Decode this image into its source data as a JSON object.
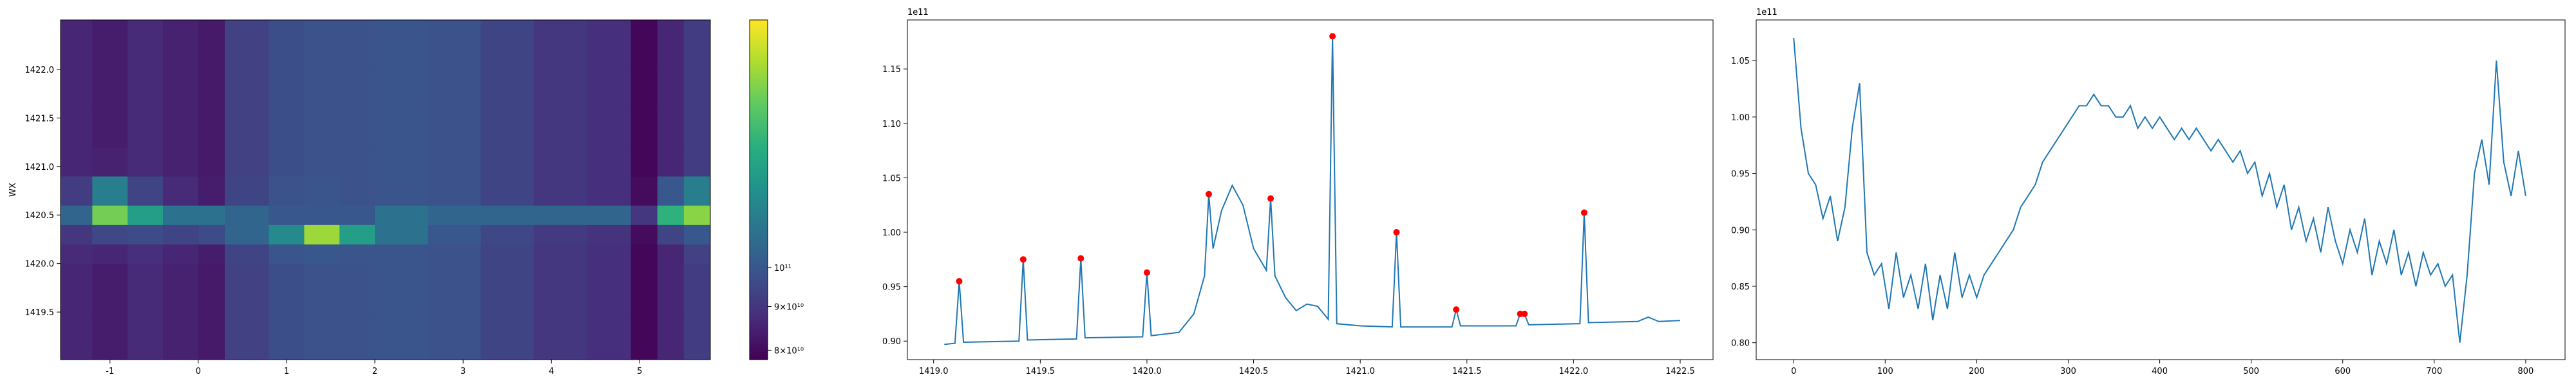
{
  "chart_data": [
    {
      "type": "heatmap",
      "ylabel": "WX",
      "x_edges": [
        -1.56,
        -1.2,
        -0.8,
        -0.4,
        0,
        0.3,
        0.8,
        1.2,
        1.6,
        2.0,
        2.6,
        3.2,
        3.8,
        4.4,
        4.9,
        5.2,
        5.5,
        5.8
      ],
      "y_edges": [
        1419.01,
        1419.5,
        1420.0,
        1420.2,
        1420.4,
        1420.6,
        1420.9,
        1421.2,
        1421.6,
        1422.0,
        1422.51
      ],
      "z": [
        [
          86000000000.0,
          84000000000.0,
          87000000000.0,
          85000000000.0,
          83000000000.0,
          93000000000.0,
          97000000000.0,
          98000000000.0,
          98000000000.0,
          99000000000.0,
          98000000000.0,
          94000000000.0,
          90000000000.0,
          88000000000.0,
          79000000000.0,
          86000000000.0,
          92000000000.0
        ],
        [
          86000000000.0,
          84000000000.0,
          87000000000.0,
          85000000000.0,
          83000000000.0,
          93000000000.0,
          97000000000.0,
          98000000000.0,
          98000000000.0,
          99000000000.0,
          98000000000.0,
          94000000000.0,
          90000000000.0,
          88000000000.0,
          79000000000.0,
          86000000000.0,
          92000000000.0
        ],
        [
          87000000000.0,
          86000000000.0,
          88000000000.0,
          86000000000.0,
          84000000000.0,
          94000000000.0,
          99000000000.0,
          100000000000.0,
          99000000000.0,
          99000000000.0,
          98000000000.0,
          94000000000.0,
          90000000000.0,
          88000000000.0,
          79000000000.0,
          86000000000.0,
          93000000000.0
        ],
        [
          90000000000.0,
          95000000000.0,
          96000000000.0,
          94000000000.0,
          96000000000.0,
          105000000000.0,
          120000000000.0,
          170000000000.0,
          130000000000.0,
          110000000000.0,
          100000000000.0,
          95000000000.0,
          91000000000.0,
          89000000000.0,
          80000000000.0,
          94000000000.0,
          100000000000.0
        ],
        [
          105000000000.0,
          160000000000.0,
          130000000000.0,
          110000000000.0,
          110000000000.0,
          105000000000.0,
          100000000000.0,
          100000000000.0,
          100000000000.0,
          110000000000.0,
          105000000000.0,
          105000000000.0,
          105000000000.0,
          105000000000.0,
          90000000000.0,
          140000000000.0,
          165000000000.0
        ],
        [
          92000000000.0,
          115000000000.0,
          94000000000.0,
          87000000000.0,
          84000000000.0,
          94000000000.0,
          98000000000.0,
          99000000000.0,
          98000000000.0,
          99000000000.0,
          98000000000.0,
          94000000000.0,
          90000000000.0,
          88000000000.0,
          80000000000.0,
          100000000000.0,
          115000000000.0
        ],
        [
          86000000000.0,
          85000000000.0,
          87000000000.0,
          85000000000.0,
          83000000000.0,
          93000000000.0,
          97000000000.0,
          98000000000.0,
          98000000000.0,
          99000000000.0,
          98000000000.0,
          94000000000.0,
          90000000000.0,
          88000000000.0,
          79000000000.0,
          86000000000.0,
          92000000000.0
        ],
        [
          86000000000.0,
          84000000000.0,
          87000000000.0,
          85000000000.0,
          83000000000.0,
          93000000000.0,
          97000000000.0,
          98000000000.0,
          98000000000.0,
          99000000000.0,
          98000000000.0,
          94000000000.0,
          90000000000.0,
          88000000000.0,
          79000000000.0,
          86000000000.0,
          92000000000.0
        ],
        [
          86000000000.0,
          84000000000.0,
          87000000000.0,
          85000000000.0,
          83000000000.0,
          93000000000.0,
          97000000000.0,
          98000000000.0,
          98000000000.0,
          99000000000.0,
          98000000000.0,
          94000000000.0,
          90000000000.0,
          88000000000.0,
          79000000000.0,
          86000000000.0,
          92000000000.0
        ],
        [
          86000000000.0,
          84000000000.0,
          87000000000.0,
          85000000000.0,
          83000000000.0,
          93000000000.0,
          97000000000.0,
          98000000000.0,
          98000000000.0,
          99000000000.0,
          98000000000.0,
          94000000000.0,
          90000000000.0,
          88000000000.0,
          79000000000.0,
          86000000000.0,
          92000000000.0
        ]
      ],
      "xlim": [
        -1.56,
        5.8
      ],
      "ylim": [
        1419.01,
        1422.51
      ],
      "xticks": [
        -1,
        0,
        1,
        2,
        3,
        4,
        5
      ],
      "yticks": [
        1419.5,
        {
          "value": 1420.0,
          "label": "1420.0"
        },
        1420.5,
        {
          "value": 1421.0,
          "label": "1421.0"
        },
        1421.5,
        {
          "value": 1422.0,
          "label": "1422.0"
        }
      ],
      "colorbar": {
        "log": true,
        "lim": [
          78000000000.0,
          195000000000.0
        ],
        "ticks": [
          {
            "value": 100000000000.0,
            "label": "10¹¹"
          },
          {
            "value": 90000000000.0,
            "label": "9×10¹⁰"
          },
          {
            "value": 80000000000.0,
            "label": "8×10¹⁰"
          }
        ]
      }
    },
    {
      "type": "line",
      "x": [
        1419.05,
        1419.1,
        1419.12,
        1419.14,
        1419.4,
        1419.42,
        1419.44,
        1419.67,
        1419.69,
        1419.71,
        1419.98,
        1420.0,
        1420.02,
        1420.15,
        1420.22,
        1420.27,
        1420.29,
        1420.31,
        1420.35,
        1420.4,
        1420.45,
        1420.5,
        1420.56,
        1420.58,
        1420.6,
        1420.65,
        1420.7,
        1420.75,
        1420.8,
        1420.85,
        1420.87,
        1420.89,
        1421.0,
        1421.15,
        1421.17,
        1421.19,
        1421.43,
        1421.45,
        1421.47,
        1421.73,
        1421.75,
        1421.77,
        1421.79,
        1422.03,
        1422.05,
        1422.07,
        1422.3,
        1422.35,
        1422.4,
        1422.5
      ],
      "series": [
        {
          "color": "#1f77b4",
          "values": [
            0.897,
            0.898,
            0.955,
            0.899,
            0.9,
            0.975,
            0.901,
            0.902,
            0.976,
            0.903,
            0.904,
            0.963,
            0.905,
            0.908,
            0.925,
            0.96,
            1.035,
            0.985,
            1.02,
            1.043,
            1.025,
            0.985,
            0.965,
            1.031,
            0.96,
            0.94,
            0.928,
            0.934,
            0.932,
            0.92,
            1.18,
            0.916,
            0.914,
            0.913,
            1.0,
            0.913,
            0.913,
            0.929,
            0.914,
            0.914,
            0.925,
            0.925,
            0.915,
            0.916,
            1.018,
            0.917,
            0.918,
            0.922,
            0.918,
            0.919
          ]
        }
      ],
      "peaks": {
        "color": "#ff0000",
        "x": [
          1419.12,
          1419.42,
          1419.69,
          1420.0,
          1420.29,
          1420.58,
          1420.87,
          1421.17,
          1421.45,
          1421.75,
          1421.77,
          1422.05
        ],
        "values": [
          0.955,
          0.975,
          0.976,
          0.963,
          1.035,
          1.031,
          1.18,
          1.0,
          0.929,
          0.925,
          0.925,
          1.018
        ]
      },
      "y_offset_text": "1e11",
      "xlim": [
        1418.877,
        1422.654
      ],
      "ylim": [
        0.883,
        1.195
      ],
      "xticks": [
        {
          "value": 1419.0,
          "label": "1419.0"
        },
        1419.5,
        {
          "value": 1420.0,
          "label": "1420.0"
        },
        1420.5,
        {
          "value": 1421.0,
          "label": "1421.0"
        },
        1421.5,
        {
          "value": 1422.0,
          "label": "1422.0"
        },
        1422.5
      ],
      "yticks": [
        {
          "value": 0.9,
          "label": "0.90"
        },
        0.95,
        {
          "value": 1.0,
          "label": "1.00"
        },
        1.05,
        {
          "value": 1.1,
          "label": "1.10"
        },
        1.15
      ]
    },
    {
      "type": "line",
      "x": [
        0,
        8,
        16,
        24,
        32,
        40,
        48,
        56,
        64,
        72,
        80,
        88,
        96,
        104,
        112,
        120,
        128,
        136,
        144,
        152,
        160,
        168,
        176,
        184,
        192,
        200,
        208,
        216,
        224,
        232,
        240,
        248,
        256,
        264,
        272,
        280,
        288,
        296,
        304,
        312,
        320,
        328,
        336,
        344,
        352,
        360,
        368,
        376,
        384,
        392,
        400,
        408,
        416,
        424,
        432,
        440,
        448,
        456,
        464,
        472,
        480,
        488,
        496,
        504,
        512,
        520,
        528,
        536,
        544,
        552,
        560,
        568,
        576,
        584,
        592,
        600,
        608,
        616,
        624,
        632,
        640,
        648,
        656,
        664,
        672,
        680,
        688,
        696,
        704,
        712,
        720,
        728,
        736,
        744,
        752,
        760,
        768,
        776,
        784,
        792,
        800
      ],
      "series": [
        {
          "color": "#1f77b4",
          "values": [
            1.07,
            0.99,
            0.95,
            0.94,
            0.91,
            0.93,
            0.89,
            0.92,
            0.99,
            1.03,
            0.88,
            0.86,
            0.87,
            0.83,
            0.88,
            0.84,
            0.86,
            0.83,
            0.87,
            0.82,
            0.86,
            0.83,
            0.88,
            0.84,
            0.86,
            0.84,
            0.86,
            0.87,
            0.88,
            0.89,
            0.9,
            0.92,
            0.93,
            0.94,
            0.96,
            0.97,
            0.98,
            0.99,
            1.0,
            1.01,
            1.01,
            1.02,
            1.01,
            1.01,
            1.0,
            1.0,
            1.01,
            0.99,
            1.0,
            0.99,
            1.0,
            0.99,
            0.98,
            0.99,
            0.98,
            0.99,
            0.98,
            0.97,
            0.98,
            0.97,
            0.96,
            0.97,
            0.95,
            0.96,
            0.93,
            0.95,
            0.92,
            0.94,
            0.9,
            0.92,
            0.89,
            0.91,
            0.88,
            0.92,
            0.89,
            0.87,
            0.9,
            0.88,
            0.91,
            0.86,
            0.89,
            0.87,
            0.9,
            0.86,
            0.88,
            0.85,
            0.88,
            0.86,
            0.87,
            0.85,
            0.86,
            0.8,
            0.86,
            0.95,
            0.98,
            0.94,
            1.05,
            0.96,
            0.93,
            0.97,
            0.93
          ]
        }
      ],
      "y_offset_text": "1e11",
      "xlim": [
        -41,
        843
      ],
      "ylim": [
        0.785,
        1.086
      ],
      "xticks": [
        0,
        100,
        200,
        300,
        400,
        500,
        600,
        700,
        800
      ],
      "yticks": [
        {
          "value": 0.8,
          "label": "0.80"
        },
        0.85,
        {
          "value": 0.9,
          "label": "0.90"
        },
        0.95,
        {
          "value": 1.0,
          "label": "1.00"
        },
        1.05
      ]
    }
  ]
}
